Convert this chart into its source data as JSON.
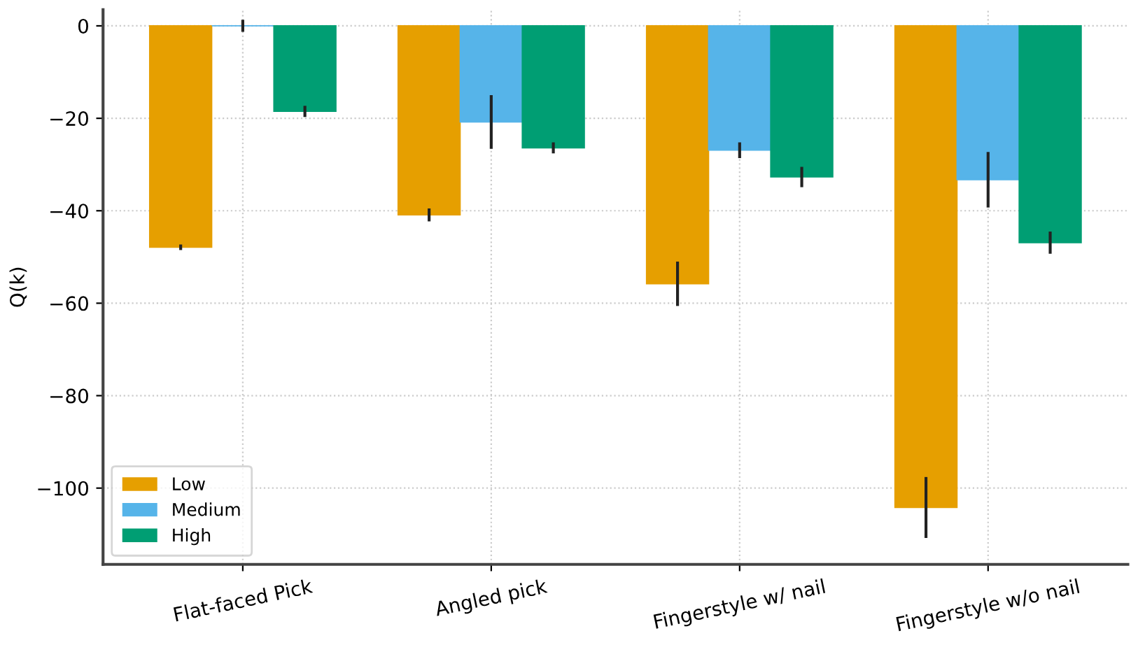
{
  "chart_data": {
    "type": "bar",
    "ylabel": "Q(k)",
    "categories": [
      "Flat-faced Pick",
      "Angled pick",
      "Fingerstyle w/ nail",
      "Fingerstyle w/o nail"
    ],
    "series": [
      {
        "name": "Low",
        "color": "#e69f00",
        "values": [
          -47.9,
          -40.9,
          -55.8,
          -104.2
        ],
        "errors": [
          0.6,
          1.4,
          4.8,
          6.6
        ]
      },
      {
        "name": "Medium",
        "color": "#56b4e9",
        "values": [
          0,
          -20.8,
          -26.9,
          -33.3
        ],
        "errors": [
          1.3,
          5.8,
          1.7,
          6
        ]
      },
      {
        "name": "High",
        "color": "#009e73",
        "values": [
          -18.5,
          -26.4,
          -32.7,
          -46.9
        ],
        "errors": [
          1.2,
          1.2,
          2.2,
          2.4
        ]
      }
    ],
    "ylim": [
      -116.5,
      3.5
    ],
    "yticks": [
      0,
      -20,
      -40,
      -60,
      -80,
      -100
    ],
    "grid": true,
    "legend": "lower left"
  }
}
